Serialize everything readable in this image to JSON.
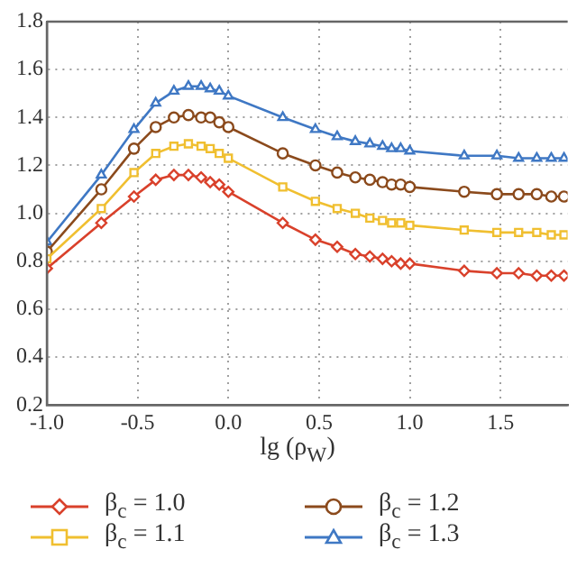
{
  "chart_data": {
    "type": "line",
    "xlabel": "lg (ρ$_{W}$)",
    "x": [
      -1.0,
      -0.7,
      -0.52,
      -0.4,
      -0.3,
      -0.22,
      -0.15,
      -0.1,
      -0.05,
      0.0,
      0.3,
      0.48,
      0.6,
      0.7,
      0.78,
      0.85,
      0.9,
      0.95,
      1.0,
      1.3,
      1.48,
      1.6,
      1.7,
      1.78,
      1.85
    ],
    "series": [
      {
        "name": "β$_{c}$ = 1.0",
        "color": "#d9412b",
        "marker": "diamond",
        "values": [
          0.77,
          0.96,
          1.07,
          1.14,
          1.16,
          1.16,
          1.15,
          1.13,
          1.12,
          1.09,
          0.96,
          0.89,
          0.86,
          0.83,
          0.82,
          0.81,
          0.8,
          0.79,
          0.79,
          0.76,
          0.75,
          0.75,
          0.74,
          0.74,
          0.74
        ]
      },
      {
        "name": "β$_{c}$ = 1.1",
        "color": "#f0bf30",
        "marker": "square",
        "values": [
          0.81,
          1.02,
          1.17,
          1.25,
          1.28,
          1.29,
          1.28,
          1.27,
          1.25,
          1.23,
          1.11,
          1.05,
          1.02,
          1.0,
          0.98,
          0.97,
          0.96,
          0.96,
          0.95,
          0.93,
          0.92,
          0.92,
          0.92,
          0.91,
          0.91
        ]
      },
      {
        "name": "β$_{c}$ = 1.2",
        "color": "#8b4a1c",
        "marker": "circle",
        "values": [
          0.84,
          1.1,
          1.27,
          1.36,
          1.4,
          1.41,
          1.4,
          1.4,
          1.38,
          1.36,
          1.25,
          1.2,
          1.17,
          1.15,
          1.14,
          1.13,
          1.12,
          1.12,
          1.11,
          1.09,
          1.08,
          1.08,
          1.08,
          1.07,
          1.07
        ]
      },
      {
        "name": "β$_{c}$ = 1.3",
        "color": "#3f78c4",
        "marker": "triangle",
        "values": [
          0.88,
          1.16,
          1.35,
          1.46,
          1.51,
          1.53,
          1.53,
          1.52,
          1.51,
          1.49,
          1.4,
          1.35,
          1.32,
          1.3,
          1.29,
          1.28,
          1.27,
          1.27,
          1.26,
          1.24,
          1.24,
          1.23,
          1.23,
          1.23,
          1.23
        ]
      }
    ],
    "xlim": [
      -1.0,
      1.87
    ],
    "xticks": [
      {
        "value": -1.0,
        "label": "-1.0"
      },
      {
        "value": -0.5,
        "label": "-0.5"
      },
      {
        "value": 0,
        "label": "0.0"
      },
      {
        "value": 0.5,
        "label": "0.5"
      },
      {
        "value": 1.0,
        "label": "1.0"
      },
      {
        "value": 1.5,
        "label": "1.5"
      }
    ],
    "ylim": [
      0.2,
      1.8
    ],
    "yticks": [
      {
        "value": 0.2,
        "label": "0.2"
      },
      {
        "value": 0.4,
        "label": "0.4"
      },
      {
        "value": 0.6,
        "label": "0.6"
      },
      {
        "value": 0.8,
        "label": "0.8"
      },
      {
        "value": 1.0,
        "label": "1.0"
      },
      {
        "value": 1.2,
        "label": "1.2"
      },
      {
        "value": 1.4,
        "label": "1.4"
      },
      {
        "value": 1.6,
        "label": "1.6"
      },
      {
        "value": 1.8,
        "label": "1.8"
      }
    ],
    "grid": true,
    "legend": "bottom"
  }
}
